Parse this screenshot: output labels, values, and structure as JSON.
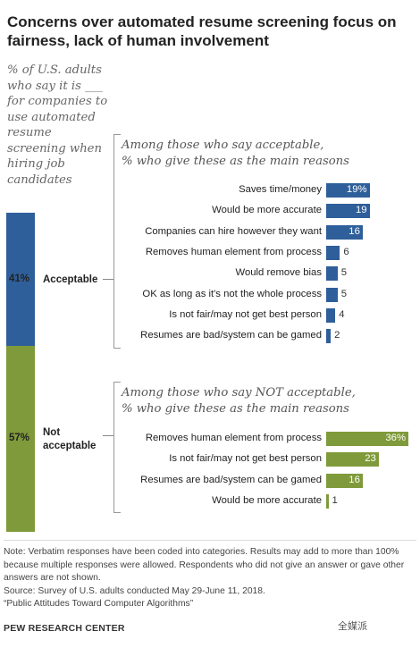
{
  "title": "Concerns over automated resume screening focus on fairness, lack of human involvement",
  "subtitle": "% of U.S. adults\nwho say it is ___\nfor companies to\nuse automated\nresume\nscreening when\nhiring job\ncandidates",
  "colors": {
    "acceptable": "#2f5f9a",
    "not_acceptable": "#7f9a3a"
  },
  "chart_data": [
    {
      "type": "bar",
      "orientation": "vertical-stacked",
      "categories": [
        "Acceptable",
        "Not acceptable"
      ],
      "values": [
        41,
        57
      ],
      "labels": [
        "41%",
        "57%"
      ]
    },
    {
      "type": "bar",
      "title": "Among those who say acceptable,\n% who give these as the main reasons",
      "categories": [
        "Saves time/money",
        "Would be more accurate",
        "Companies can hire however they want",
        "Removes human element from process",
        "Would remove bias",
        "OK as long as it's not the whole process",
        "Is not fair/may not get best person",
        "Resumes are bad/system can be gamed"
      ],
      "values": [
        19,
        19,
        16,
        6,
        5,
        5,
        4,
        2
      ],
      "value_labels": [
        "19%",
        "19",
        "16",
        "6",
        "5",
        "5",
        "4",
        "2"
      ]
    },
    {
      "type": "bar",
      "title": "Among those who say NOT acceptable,\n% who give these as the main reasons",
      "categories": [
        "Removes human element from process",
        "Is not fair/may not get best person",
        "Resumes are bad/system can be gamed",
        "Would be more accurate"
      ],
      "values": [
        36,
        23,
        16,
        1
      ],
      "value_labels": [
        "36%",
        "23",
        "16",
        "1"
      ]
    }
  ],
  "note": "Note: Verbatim responses have been coded into categories. Results may add to more than 100% because multiple responses were allowed. Respondents who did not give an answer or gave other answers are not shown.",
  "source": "Source: Survey of U.S. adults conducted May 29-June 11, 2018.",
  "report": "“Public Attitudes Toward Computer Algorithms”",
  "footer": "PEW RESEARCH CENTER",
  "watermark": "全媒派"
}
